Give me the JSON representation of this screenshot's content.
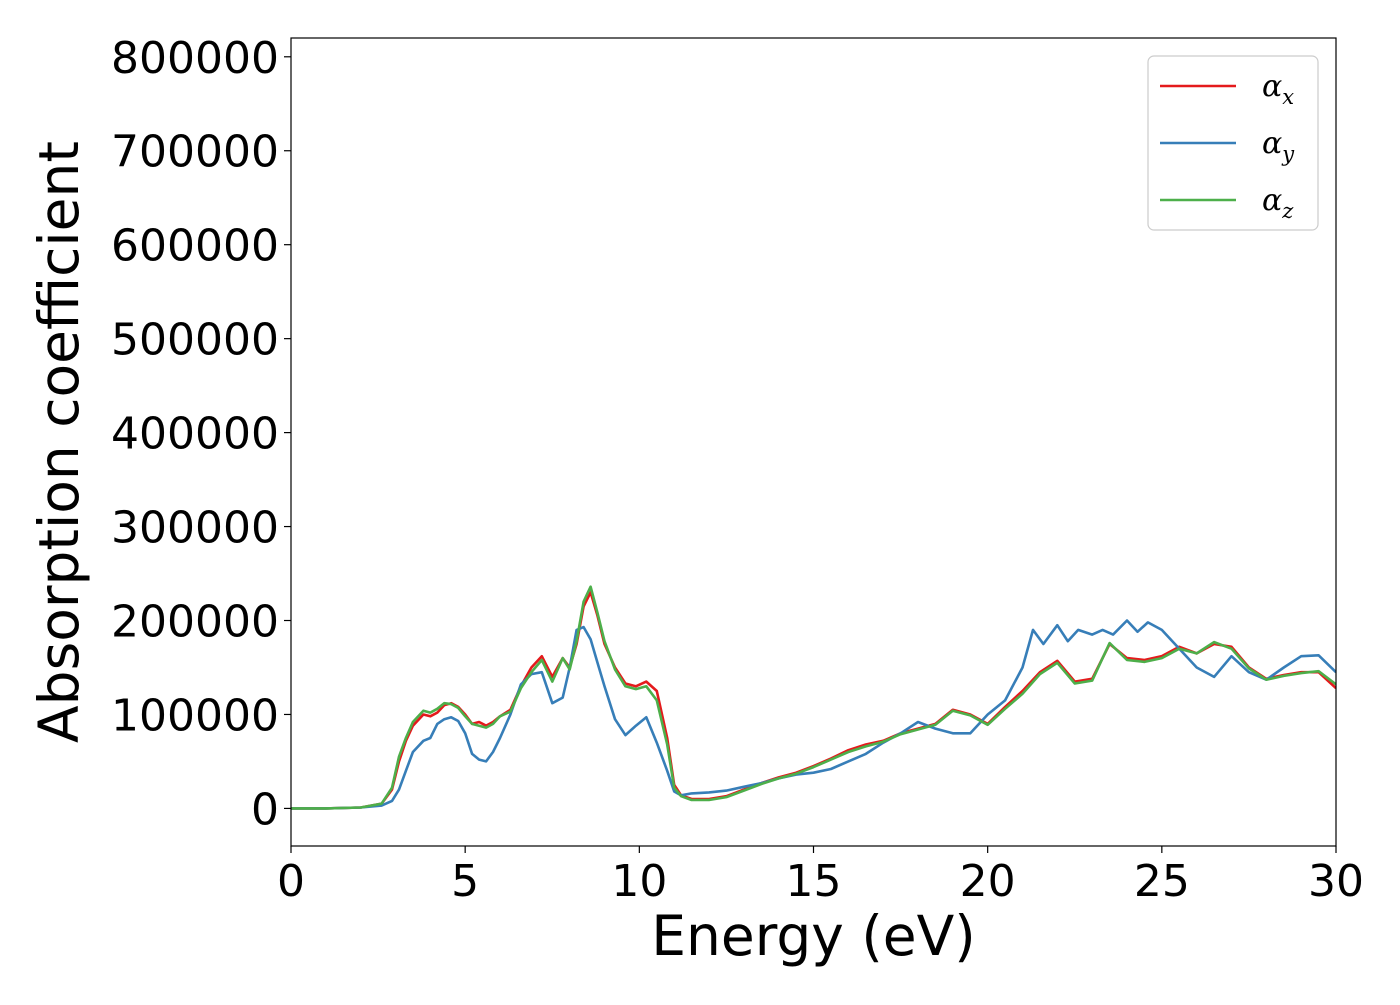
{
  "colors": {
    "alpha_x": "#e41a1c",
    "alpha_y": "#377eb8",
    "alpha_z": "#4daf4a",
    "axis": "#000000"
  },
  "chart_data": {
    "type": "line",
    "xlabel": "Energy (eV)",
    "ylabel": "Absorption coefficient",
    "xlim": [
      0,
      30
    ],
    "ylim": [
      -40000,
      820000
    ],
    "xticks": [
      0,
      5,
      10,
      15,
      20,
      25,
      30
    ],
    "xtick_labels": [
      "0",
      "5",
      "10",
      "15",
      "20",
      "25",
      "30"
    ],
    "yticks": [
      0,
      100000,
      200000,
      300000,
      400000,
      500000,
      600000,
      700000,
      800000
    ],
    "ytick_labels": [
      "0",
      "100000",
      "200000",
      "300000",
      "400000",
      "500000",
      "600000",
      "700000",
      "800000"
    ],
    "grid": false,
    "legend_position": "top-right",
    "series": [
      {
        "name": "α",
        "subscript": "x",
        "color": "#e41a1c",
        "x": [
          0,
          1,
          2,
          2.6,
          2.9,
          3.1,
          3.3,
          3.5,
          3.8,
          4.0,
          4.2,
          4.4,
          4.6,
          4.8,
          5.0,
          5.2,
          5.4,
          5.6,
          5.8,
          6.0,
          6.3,
          6.6,
          6.9,
          7.2,
          7.5,
          7.8,
          8.0,
          8.2,
          8.4,
          8.6,
          8.8,
          9.0,
          9.3,
          9.6,
          9.9,
          10.2,
          10.5,
          10.8,
          11.0,
          11.2,
          11.5,
          12.0,
          12.5,
          13.0,
          13.5,
          14.0,
          14.5,
          15.0,
          15.5,
          16.0,
          16.5,
          17.0,
          17.5,
          18.0,
          18.5,
          19.0,
          19.5,
          20.0,
          20.5,
          21.0,
          21.5,
          22.0,
          22.5,
          23.0,
          23.5,
          24.0,
          24.5,
          25.0,
          25.5,
          26.0,
          26.5,
          27.0,
          27.5,
          28.0,
          28.5,
          29.0,
          29.5,
          30.0
        ],
        "y": [
          0,
          0,
          1000,
          5000,
          20000,
          50000,
          72000,
          88000,
          100000,
          98000,
          102000,
          110000,
          112000,
          108000,
          100000,
          90000,
          92000,
          88000,
          92000,
          98000,
          105000,
          130000,
          150000,
          162000,
          140000,
          160000,
          150000,
          175000,
          215000,
          230000,
          205000,
          175000,
          150000,
          133000,
          130000,
          135000,
          125000,
          75000,
          25000,
          14000,
          10000,
          10000,
          13000,
          20000,
          27000,
          33000,
          38000,
          45000,
          53000,
          62000,
          68000,
          72000,
          80000,
          85000,
          90000,
          105000,
          100000,
          90000,
          108000,
          125000,
          145000,
          157000,
          135000,
          138000,
          175000,
          160000,
          158000,
          162000,
          172000,
          165000,
          175000,
          172000,
          150000,
          138000,
          142000,
          145000,
          145000,
          128000
        ]
      },
      {
        "name": "α",
        "subscript": "y",
        "color": "#377eb8",
        "x": [
          0,
          1,
          2,
          2.6,
          2.9,
          3.1,
          3.3,
          3.5,
          3.8,
          4.0,
          4.2,
          4.4,
          4.6,
          4.8,
          5.0,
          5.2,
          5.4,
          5.6,
          5.8,
          6.0,
          6.3,
          6.6,
          6.9,
          7.2,
          7.5,
          7.8,
          8.0,
          8.2,
          8.4,
          8.6,
          8.8,
          9.0,
          9.3,
          9.6,
          9.9,
          10.2,
          10.5,
          10.8,
          11.0,
          11.2,
          11.5,
          12.0,
          12.5,
          13.0,
          13.5,
          14.0,
          14.5,
          15.0,
          15.5,
          16.0,
          16.5,
          17.0,
          17.5,
          18.0,
          18.5,
          19.0,
          19.5,
          20.0,
          20.5,
          21.0,
          21.3,
          21.6,
          22.0,
          22.3,
          22.6,
          23.0,
          23.3,
          23.6,
          24.0,
          24.3,
          24.6,
          25.0,
          25.5,
          26.0,
          26.5,
          27.0,
          27.5,
          28.0,
          28.5,
          29.0,
          29.5,
          30.0
        ],
        "y": [
          0,
          0,
          1000,
          3000,
          8000,
          20000,
          40000,
          60000,
          72000,
          75000,
          90000,
          95000,
          97000,
          93000,
          80000,
          58000,
          52000,
          50000,
          60000,
          75000,
          100000,
          132000,
          143000,
          145000,
          112000,
          118000,
          150000,
          190000,
          193000,
          180000,
          155000,
          130000,
          95000,
          78000,
          88000,
          97000,
          70000,
          40000,
          18000,
          14000,
          16000,
          17000,
          19000,
          23000,
          27000,
          32000,
          36000,
          38000,
          42000,
          50000,
          58000,
          70000,
          80000,
          92000,
          85000,
          80000,
          80000,
          100000,
          115000,
          150000,
          190000,
          175000,
          195000,
          178000,
          190000,
          185000,
          190000,
          185000,
          200000,
          188000,
          198000,
          190000,
          170000,
          150000,
          140000,
          162000,
          145000,
          137000,
          150000,
          162000,
          163000,
          145000
        ]
      },
      {
        "name": "α",
        "subscript": "z",
        "color": "#4daf4a",
        "x": [
          0,
          1,
          2,
          2.6,
          2.9,
          3.1,
          3.3,
          3.5,
          3.8,
          4.0,
          4.2,
          4.4,
          4.6,
          4.8,
          5.0,
          5.2,
          5.4,
          5.6,
          5.8,
          6.0,
          6.3,
          6.6,
          6.9,
          7.2,
          7.5,
          7.8,
          8.0,
          8.2,
          8.4,
          8.6,
          8.8,
          9.0,
          9.3,
          9.6,
          9.9,
          10.2,
          10.5,
          10.8,
          11.0,
          11.2,
          11.5,
          12.0,
          12.5,
          13.0,
          13.5,
          14.0,
          14.5,
          15.0,
          15.5,
          16.0,
          16.5,
          17.0,
          17.5,
          18.0,
          18.5,
          19.0,
          19.5,
          20.0,
          20.5,
          21.0,
          21.5,
          22.0,
          22.5,
          23.0,
          23.5,
          24.0,
          24.5,
          25.0,
          25.5,
          26.0,
          26.5,
          27.0,
          27.5,
          28.0,
          28.5,
          29.0,
          29.5,
          30.0
        ],
        "y": [
          0,
          0,
          1000,
          5000,
          22000,
          55000,
          75000,
          92000,
          104000,
          102000,
          106000,
          112000,
          111000,
          107000,
          98000,
          90000,
          88000,
          86000,
          90000,
          98000,
          103000,
          128000,
          145000,
          158000,
          135000,
          160000,
          148000,
          178000,
          220000,
          236000,
          208000,
          178000,
          148000,
          130000,
          127000,
          130000,
          115000,
          68000,
          22000,
          13000,
          9000,
          9000,
          12000,
          19000,
          26000,
          32000,
          37000,
          44000,
          52000,
          60000,
          66000,
          71000,
          79000,
          84000,
          89000,
          104000,
          99000,
          89000,
          106000,
          122000,
          143000,
          155000,
          133000,
          136000,
          176000,
          158000,
          156000,
          160000,
          170000,
          165000,
          177000,
          170000,
          149000,
          137000,
          141000,
          144000,
          146000,
          132000
        ]
      }
    ]
  }
}
